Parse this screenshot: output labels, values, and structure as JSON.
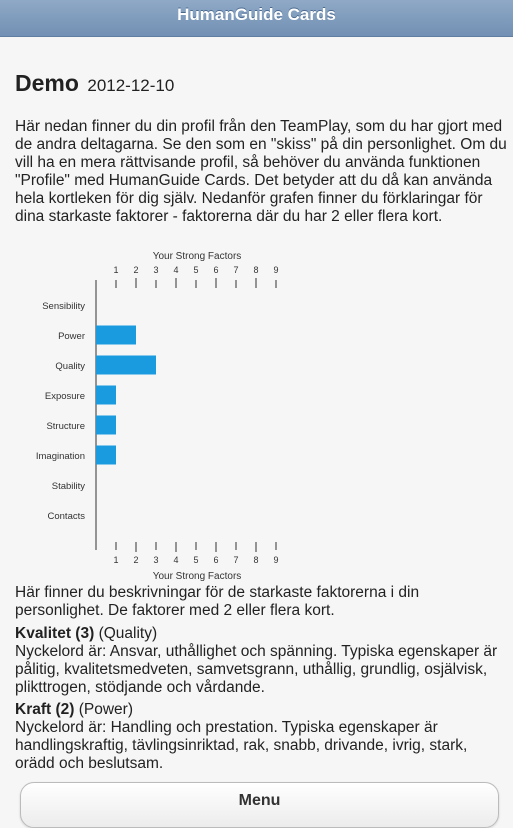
{
  "header": {
    "title": "HumanGuide Cards"
  },
  "page": {
    "title": "Demo",
    "date": "2012-12-10",
    "intro": "Här nedan finner du din profil från den TeamPlay, som du har gjort med de andra deltagarna. Se den som en \"skiss\" på din personlighet. Om du vill ha en mera rättvisande profil, så behöver du använda funktionen \"Profile\" med HumanGuide Cards. Det betyder att du då kan använda hela kortleken för dig själv. Nedanför grafen finner du förklaringar för dina starkaste faktorer - faktorerna där du har 2 eller flera kort.",
    "after_chart": "Här finner du beskrivningar för de starkaste faktorerna i din personlighet. De faktorer med 2 eller flera kort."
  },
  "chart_data": {
    "type": "bar",
    "orientation": "horizontal",
    "title_top": "Your Strong Factors",
    "title_bottom": "Your Strong Factors",
    "categories": [
      "Sensibility",
      "Power",
      "Quality",
      "Exposure",
      "Structure",
      "Imagination",
      "Stability",
      "Contacts"
    ],
    "values": [
      0,
      2,
      3,
      1,
      1,
      1,
      0,
      0
    ],
    "ticks": [
      1,
      2,
      3,
      4,
      5,
      6,
      7,
      8,
      9
    ],
    "xlim": [
      0,
      9
    ],
    "bar_color": "#1a9be0",
    "grid": false
  },
  "factors": [
    {
      "name": "Kvalitet (3)",
      "english": "(Quality)",
      "description": "Nyckelord är: Ansvar, uthållighet och spänning. Typiska egenskaper är pålitig, kvalitetsmedveten, samvetsgrann, uthållig, grundlig, osjälvisk, plikttrogen, stödjande och vårdande."
    },
    {
      "name": "Kraft (2)",
      "english": "(Power)",
      "description": "Nyckelord är: Handling och prestation. Typiska egenskaper är handlingskraftig, tävlingsinriktad, rak, snabb, drivande, ivrig, stark, orädd och beslutsam."
    }
  ],
  "menu": {
    "label": "Menu"
  }
}
